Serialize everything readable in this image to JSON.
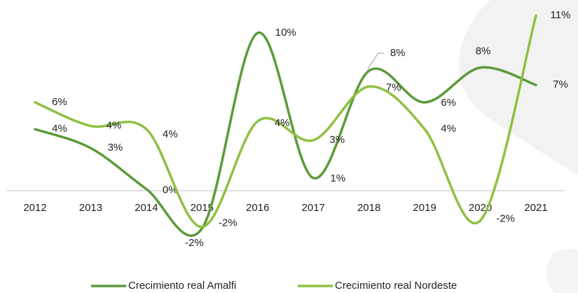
{
  "chart_data": {
    "type": "line",
    "categories": [
      "2012",
      "2013",
      "2014",
      "2015",
      "2016",
      "2017",
      "2018",
      "2019",
      "2020",
      "2021"
    ],
    "series": [
      {
        "name": "Crecimiento real Amalfi",
        "color": "#5b9a3a",
        "values": [
          3.9,
          2.7,
          0.1,
          -2.4,
          10.0,
          0.8,
          7.6,
          5.6,
          7.8,
          6.7
        ],
        "value_labels": [
          "4%",
          "3%",
          "0%",
          "-2%",
          "10%",
          "1%",
          "8%",
          "6%",
          "8%",
          "7%"
        ]
      },
      {
        "name": "Crecimiento real Nordeste",
        "color": "#8fc040",
        "values": [
          5.6,
          4.1,
          3.9,
          -2.3,
          4.4,
          3.2,
          6.6,
          3.9,
          -1.9,
          11.1
        ],
        "value_labels": [
          "6%",
          "4%",
          "4%",
          "-2%",
          "4%",
          "3%",
          "7%",
          "4%",
          "-2%",
          "11%"
        ]
      }
    ],
    "ylim": [
      -5,
      12
    ]
  }
}
